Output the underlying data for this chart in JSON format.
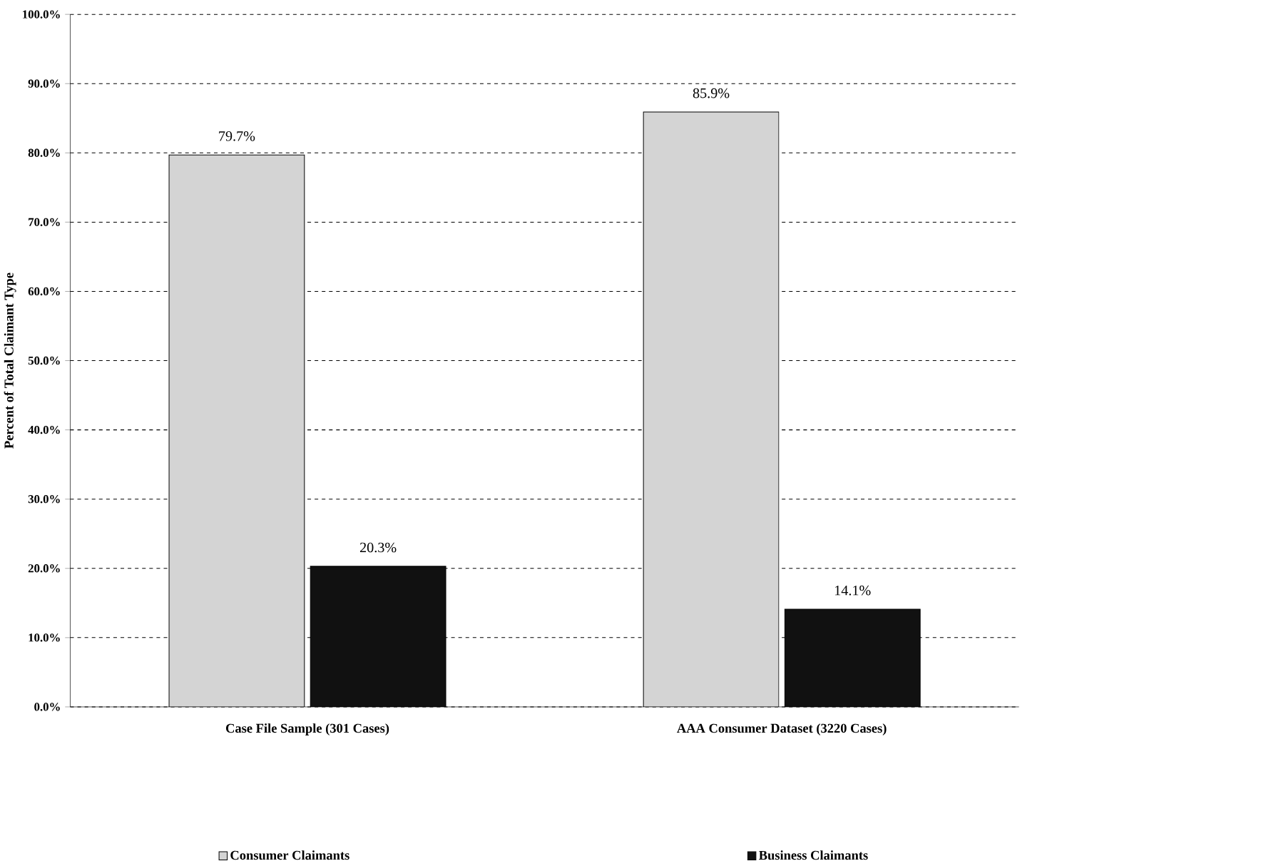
{
  "chart_data": {
    "type": "bar",
    "ylabel": "Percent of Total Claimant Type",
    "categories": [
      "Case File Sample (301 Cases)",
      "AAA Consumer Dataset (3220 Cases)"
    ],
    "series": [
      {
        "name": "Consumer Claimants",
        "color": "#d4d4d4",
        "values": [
          79.7,
          85.9
        ],
        "value_labels": [
          "79.7%",
          "85.9%"
        ]
      },
      {
        "name": "Business Claimants",
        "color": "#111111",
        "values": [
          20.3,
          14.1
        ],
        "value_labels": [
          "20.3%",
          "14.1%"
        ]
      }
    ],
    "ylim": [
      0,
      100
    ],
    "yticks": [
      {
        "value": 0,
        "label": "0.0%"
      },
      {
        "value": 10,
        "label": "10.0%"
      },
      {
        "value": 20,
        "label": "20.0%"
      },
      {
        "value": 30,
        "label": "30.0%"
      },
      {
        "value": 40,
        "label": "40.0%"
      },
      {
        "value": 50,
        "label": "50.0%"
      },
      {
        "value": 60,
        "label": "60.0%"
      },
      {
        "value": 70,
        "label": "70.0%"
      },
      {
        "value": 80,
        "label": "80.0%"
      },
      {
        "value": 90,
        "label": "90.0%"
      },
      {
        "value": 100,
        "label": "100.0%"
      }
    ],
    "grid": "y",
    "legend": "bottom"
  }
}
